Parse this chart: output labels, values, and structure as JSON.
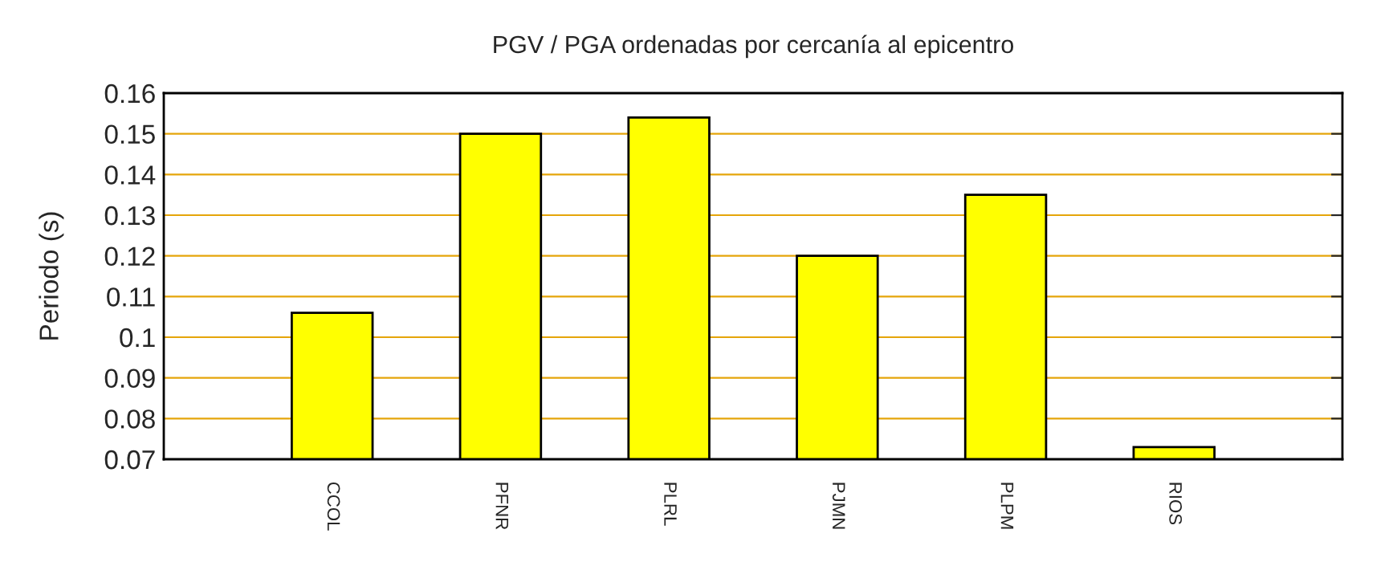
{
  "chart_data": {
    "type": "bar",
    "title": "PGV / PGA ordenadas por cercanía al epicentro",
    "ylabel": "Periodo (s)",
    "categories": [
      "CCOL",
      "PFNR",
      "PLRL",
      "PJMN",
      "PLPM",
      "RIOS"
    ],
    "values": [
      0.106,
      0.15,
      0.154,
      0.12,
      0.135,
      0.073
    ],
    "color": "#ffff00",
    "ylim": [
      0.07,
      0.16
    ],
    "yticks": [
      0.07,
      0.08,
      0.09,
      0.1,
      0.11,
      0.12,
      0.13,
      0.14,
      0.15,
      0.16
    ],
    "grid": "y"
  }
}
